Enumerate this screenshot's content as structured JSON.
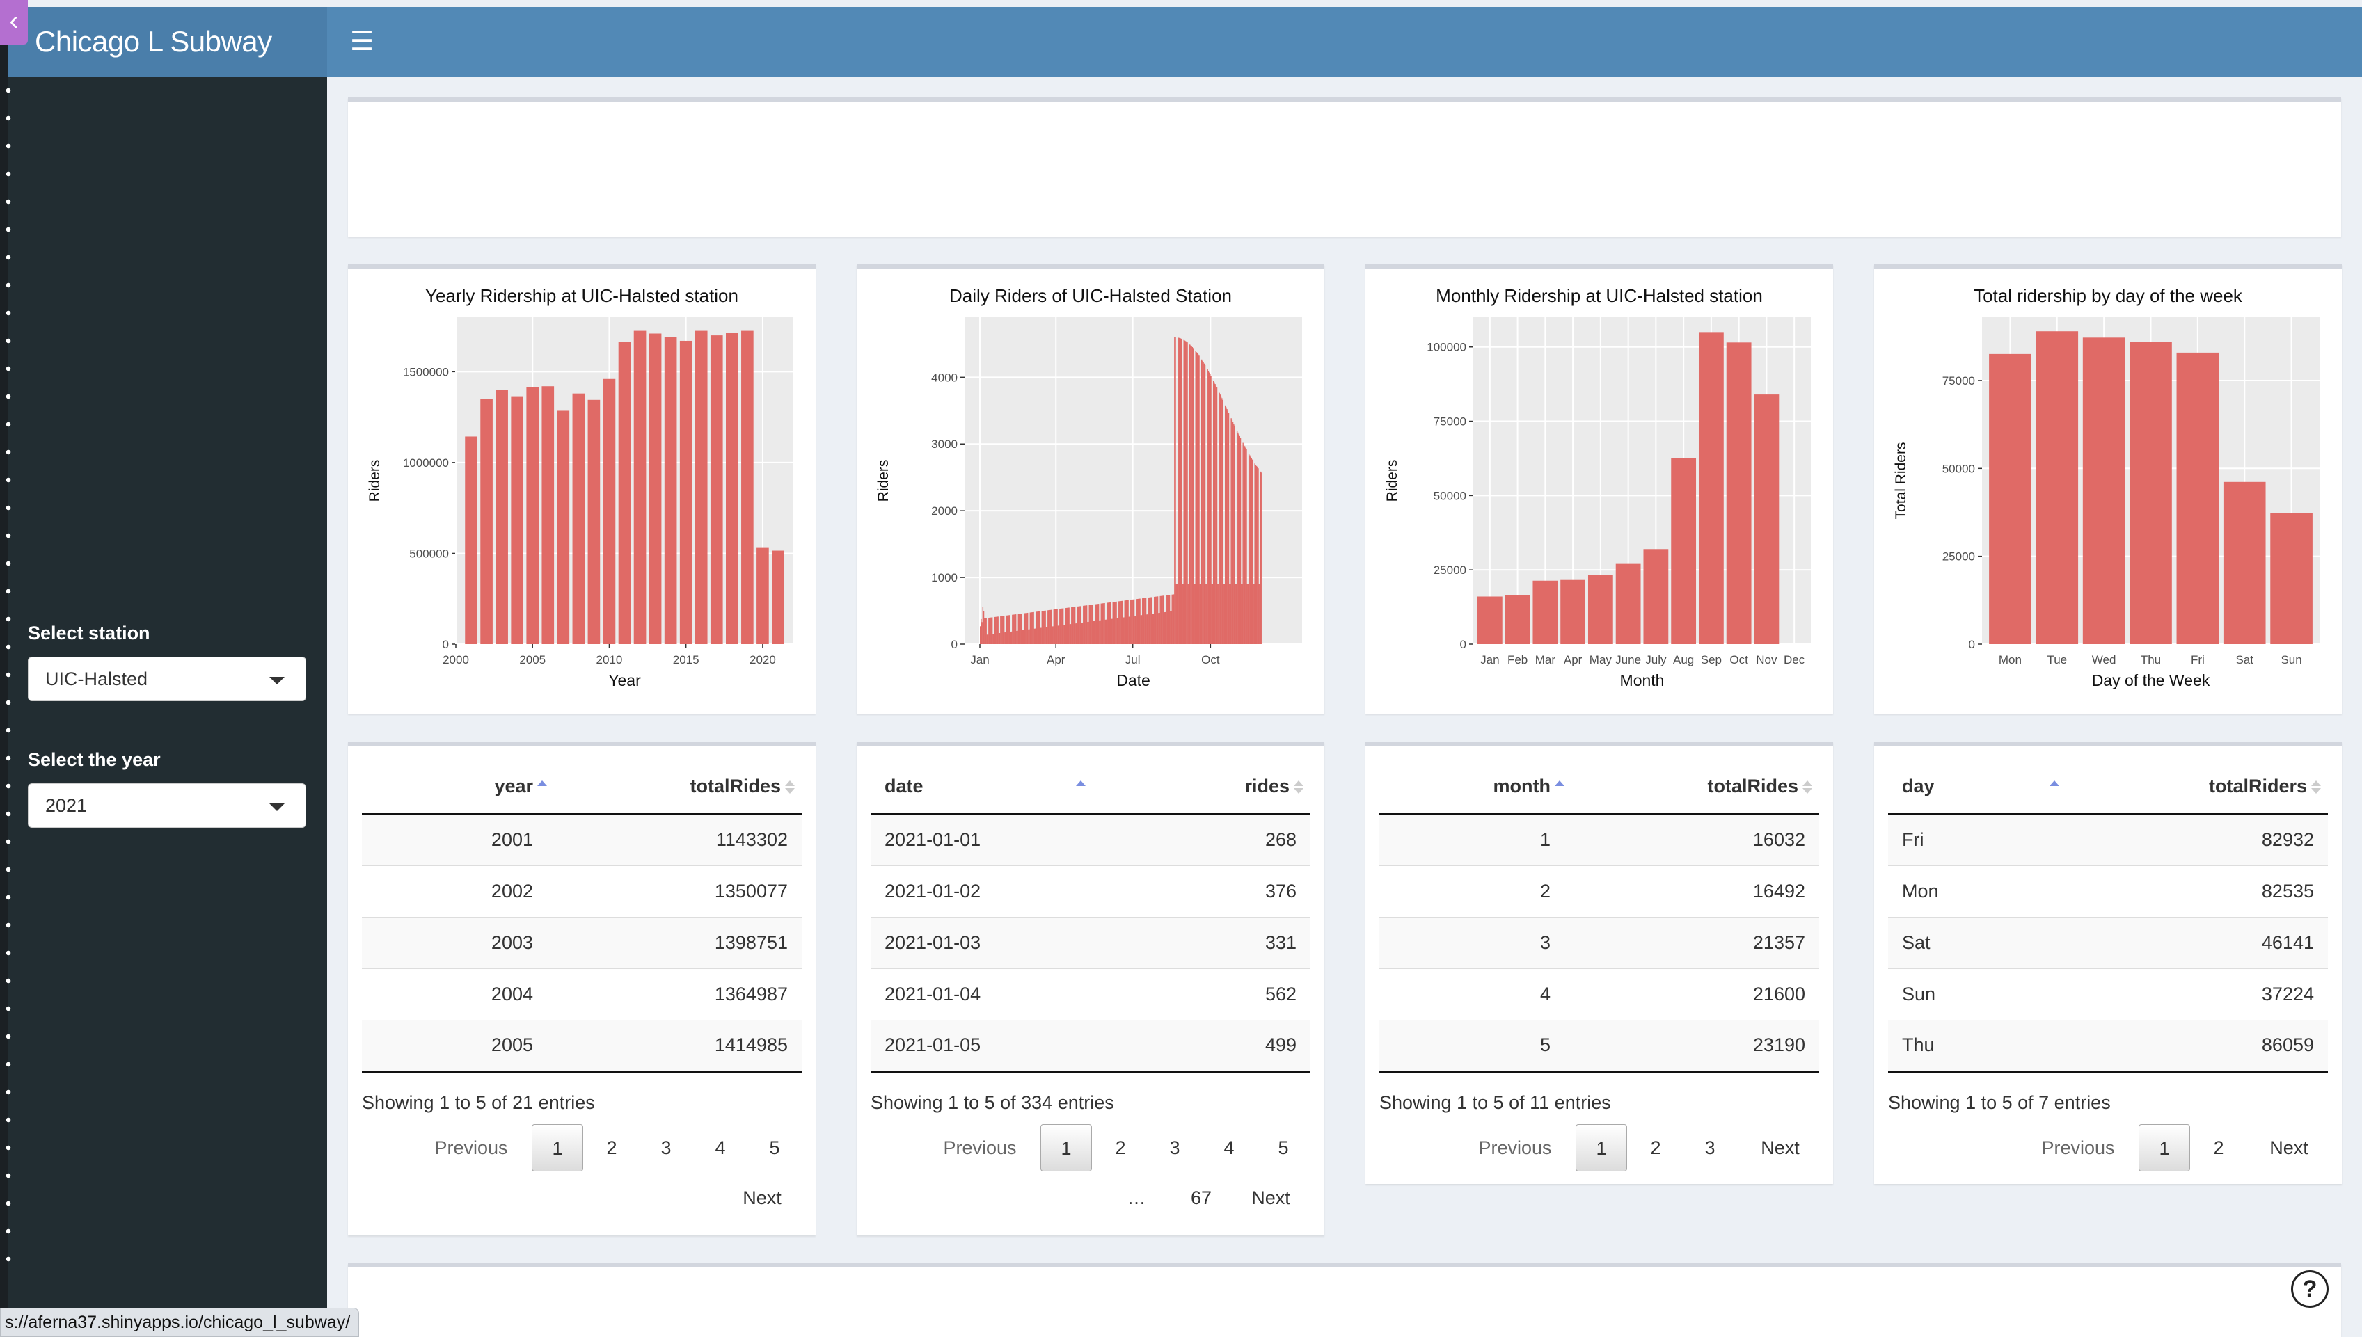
{
  "app": {
    "title": "Chicago L Subway"
  },
  "sidebar": {
    "station_label": "Select station",
    "station_value": "UIC-Halsted",
    "year_label": "Select the year",
    "year_value": "2021"
  },
  "colors": {
    "bar": "#e06a66",
    "header": "#5289b6",
    "sidebar": "#222d32",
    "panel": "#ebebeb"
  },
  "chart_data": [
    {
      "type": "bar",
      "title": "Yearly Ridership at UIC-Halsted station",
      "xlabel": "Year",
      "ylabel": "Riders",
      "x": [
        2001,
        2002,
        2003,
        2004,
        2005,
        2006,
        2007,
        2008,
        2009,
        2010,
        2011,
        2012,
        2013,
        2014,
        2015,
        2016,
        2017,
        2018,
        2019,
        2020,
        2021
      ],
      "values": [
        1143302,
        1350077,
        1398751,
        1364987,
        1414985,
        1420000,
        1285000,
        1380000,
        1345000,
        1460000,
        1665000,
        1725000,
        1710000,
        1690000,
        1670000,
        1725000,
        1700000,
        1715000,
        1725000,
        530000,
        515000
      ],
      "xticks": [
        "2000",
        "2005",
        "2010",
        "2015",
        "2020"
      ],
      "yticks": [
        "0",
        "500000",
        "1000000",
        "1500000"
      ],
      "xlim": [
        2000,
        2022
      ],
      "ylim": [
        0,
        1800000
      ],
      "grid": true
    },
    {
      "type": "bar",
      "title": "Daily Riders of UIC-Halsted Station",
      "xlabel": "Date",
      "ylabel": "Riders",
      "x_range": [
        "2021-01-01",
        "2021-12-01"
      ],
      "xticks": [
        "Jan",
        "Apr",
        "Jul",
        "Oct"
      ],
      "yticks": [
        "0",
        "1000",
        "2000",
        "3000",
        "4000"
      ],
      "ylim": [
        0,
        4900
      ],
      "grid": true,
      "sample_values_first_five": [
        268,
        376,
        331,
        562,
        499
      ],
      "peak_value": 4700
    },
    {
      "type": "bar",
      "title": "Monthly Ridership at UIC-Halsted station",
      "xlabel": "Month",
      "ylabel": "Riders",
      "categories": [
        "Jan",
        "Feb",
        "Mar",
        "Apr",
        "May",
        "June",
        "July",
        "Aug",
        "Sep",
        "Oct",
        "Nov",
        "Dec"
      ],
      "values": [
        16032,
        16492,
        21357,
        21600,
        23190,
        27000,
        32000,
        62500,
        105000,
        101500,
        84000,
        0
      ],
      "yticks": [
        "0",
        "25000",
        "50000",
        "75000",
        "100000"
      ],
      "ylim": [
        0,
        110000
      ],
      "grid": true
    },
    {
      "type": "bar",
      "title": "Total ridership by day of the week",
      "xlabel": "Day of the Week",
      "ylabel": "Total Riders",
      "categories": [
        "Mon",
        "Tue",
        "Wed",
        "Thu",
        "Fri",
        "Sat",
        "Sun"
      ],
      "values": [
        82535,
        89000,
        87200,
        86059,
        82932,
        46141,
        37224
      ],
      "yticks": [
        "0",
        "25000",
        "50000",
        "75000"
      ],
      "ylim": [
        0,
        93000
      ],
      "grid": true
    }
  ],
  "tables": {
    "yearly": {
      "columns": [
        "year",
        "totalRides"
      ],
      "rows": [
        [
          "2001",
          "1143302"
        ],
        [
          "2002",
          "1350077"
        ],
        [
          "2003",
          "1398751"
        ],
        [
          "2004",
          "1364987"
        ],
        [
          "2005",
          "1414985"
        ]
      ],
      "info": "Showing 1 to 5 of 21 entries",
      "pager": {
        "prev": "Previous",
        "pages": [
          "1",
          "2",
          "3",
          "4",
          "5"
        ],
        "next": "Next"
      }
    },
    "daily": {
      "columns": [
        "date",
        "rides"
      ],
      "rows": [
        [
          "2021-01-01",
          "268"
        ],
        [
          "2021-01-02",
          "376"
        ],
        [
          "2021-01-03",
          "331"
        ],
        [
          "2021-01-04",
          "562"
        ],
        [
          "2021-01-05",
          "499"
        ]
      ],
      "info": "Showing 1 to 5 of 334 entries",
      "pager": {
        "prev": "Previous",
        "pages": [
          "1",
          "2",
          "3",
          "4",
          "5"
        ],
        "ellipsis": "…",
        "last": "67",
        "next": "Next"
      }
    },
    "monthly": {
      "columns": [
        "month",
        "totalRides"
      ],
      "rows": [
        [
          "1",
          "16032"
        ],
        [
          "2",
          "16492"
        ],
        [
          "3",
          "21357"
        ],
        [
          "4",
          "21600"
        ],
        [
          "5",
          "23190"
        ]
      ],
      "info": "Showing 1 to 5 of 11 entries",
      "pager": {
        "prev": "Previous",
        "pages": [
          "1",
          "2",
          "3"
        ],
        "next": "Next"
      }
    },
    "weekday": {
      "columns": [
        "day",
        "totalRiders"
      ],
      "rows": [
        [
          "Fri",
          "82932"
        ],
        [
          "Mon",
          "82535"
        ],
        [
          "Sat",
          "46141"
        ],
        [
          "Sun",
          "37224"
        ],
        [
          "Thu",
          "86059"
        ]
      ],
      "info": "Showing 1 to 5 of 7 entries",
      "pager": {
        "prev": "Previous",
        "pages": [
          "1",
          "2"
        ],
        "next": "Next"
      }
    }
  },
  "status_url": "s://aferna37.shinyapps.io/chicago_l_subway/"
}
